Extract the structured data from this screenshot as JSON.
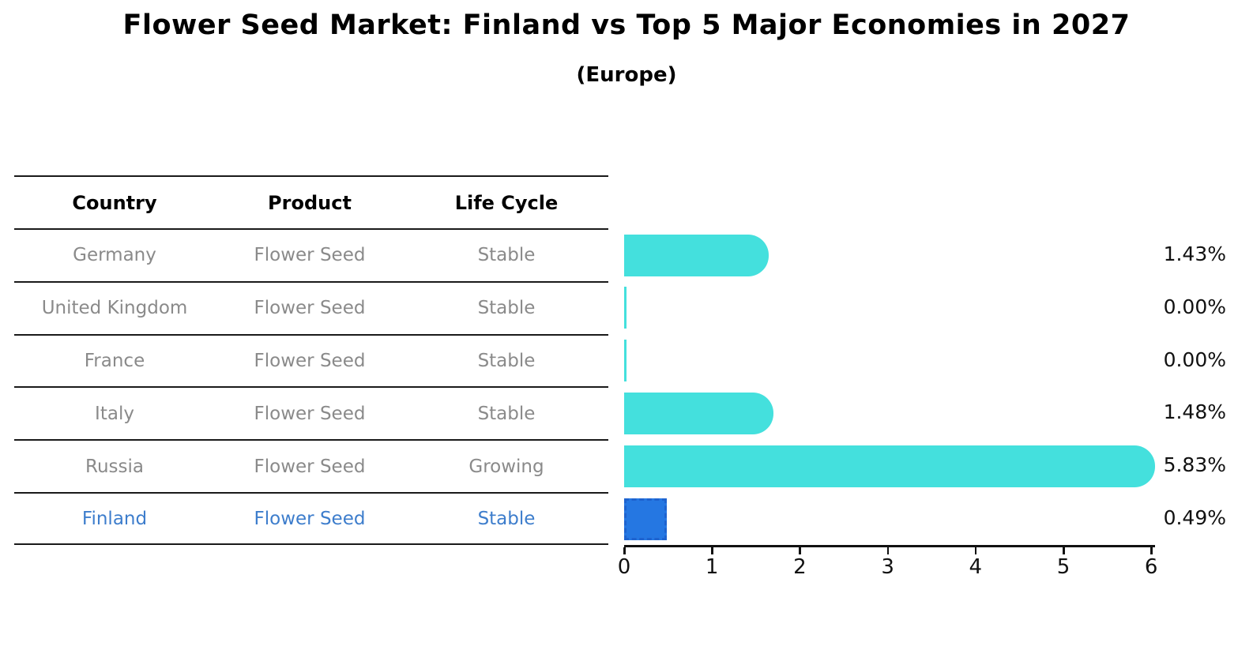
{
  "title": "Flower Seed Market: Finland vs Top 5 Major Economies in 2027",
  "subtitle": "(Europe)",
  "table": {
    "headers": [
      "Country",
      "Product",
      "Life Cycle"
    ],
    "rows": [
      {
        "country": "Germany",
        "product": "Flower Seed",
        "life_cycle": "Stable"
      },
      {
        "country": "United Kingdom",
        "product": "Flower Seed",
        "life_cycle": "Stable"
      },
      {
        "country": "France",
        "product": "Flower Seed",
        "life_cycle": "Stable"
      },
      {
        "country": "Italy",
        "product": "Flower Seed",
        "life_cycle": "Stable"
      },
      {
        "country": "Russia",
        "product": "Flower Seed",
        "life_cycle": "Growing"
      },
      {
        "country": "Finland",
        "product": "Flower Seed",
        "life_cycle": "Stable"
      }
    ],
    "highlighted_row": "Finland"
  },
  "chart_data": {
    "type": "bar",
    "orientation": "horizontal",
    "categories": [
      "Germany",
      "United Kingdom",
      "France",
      "Italy",
      "Russia",
      "Finland"
    ],
    "values": [
      1.43,
      0.0,
      0.0,
      1.48,
      5.83,
      0.49
    ],
    "value_labels": [
      "1.43%",
      "0.00%",
      "0.00%",
      "1.48%",
      "5.83%",
      "0.49%"
    ],
    "xticks": [
      "0",
      "1",
      "2",
      "3",
      "4",
      "5",
      "6"
    ],
    "xlim": [
      0,
      6
    ],
    "highlight_index": 5,
    "title": "Flower Seed Market: Finland vs Top 5 Major Economies in 2027",
    "subtitle": "(Europe)",
    "grid": false,
    "legend": false
  },
  "colors": {
    "bar": "#44e0dd",
    "highlight_bar": "#2577e2",
    "highlight_text": "#3d7dcc",
    "cell_text": "#8a8a8a",
    "axis_text": "#111111"
  }
}
